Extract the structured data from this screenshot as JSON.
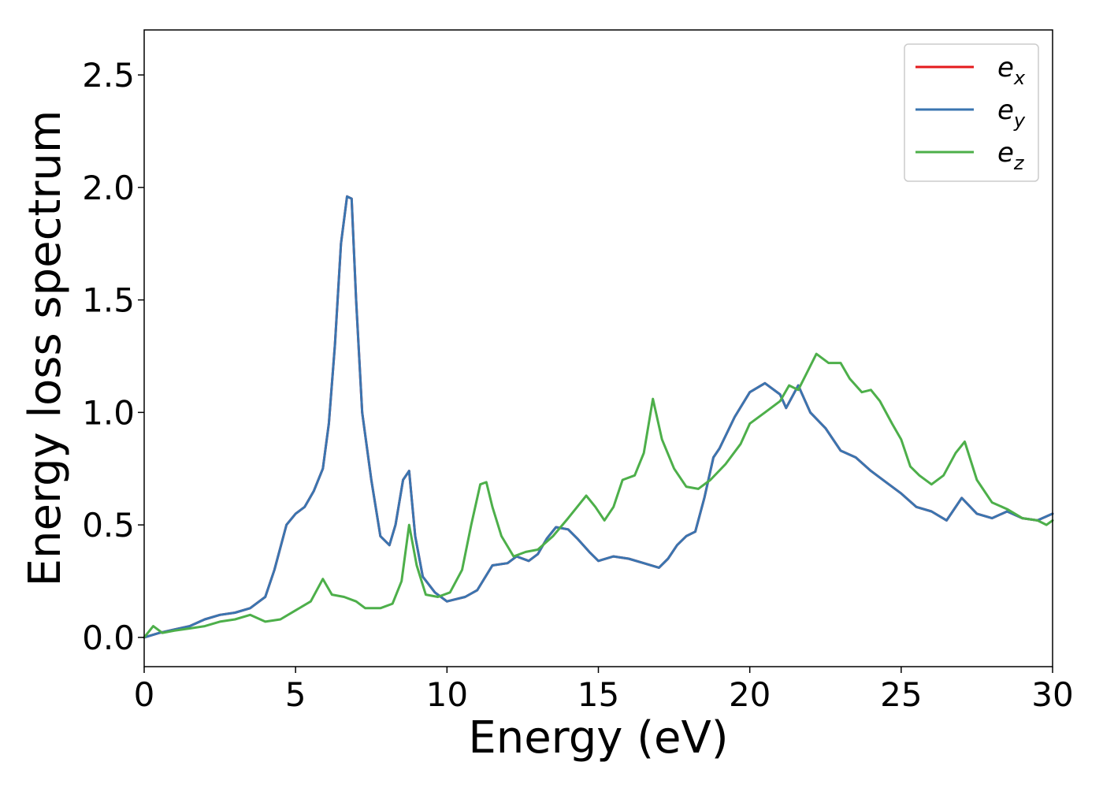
{
  "chart_data": {
    "type": "line",
    "xlabel": "Energy (eV)",
    "ylabel": "Energy loss spectrum",
    "xlim": [
      0,
      30
    ],
    "ylim": [
      -0.13,
      2.7
    ],
    "xticks": [
      0,
      5,
      10,
      15,
      20,
      25,
      30
    ],
    "xtick_labels": [
      "0",
      "5",
      "10",
      "15",
      "20",
      "25",
      "30"
    ],
    "yticks": [
      0.0,
      0.5,
      1.0,
      1.5,
      2.0,
      2.5
    ],
    "ytick_labels": [
      "0.0",
      "0.5",
      "1.0",
      "1.5",
      "2.0",
      "2.5"
    ],
    "grid": false,
    "legend_position": "top-right",
    "series": [
      {
        "name": "e_x",
        "label_main": "e",
        "label_sub": "x",
        "color": "#e41a1c",
        "x": [
          0,
          0.5,
          1,
          1.5,
          2,
          2.5,
          3,
          3.5,
          4,
          4.3,
          4.7,
          5,
          5.3,
          5.6,
          5.9,
          6.1,
          6.3,
          6.5,
          6.7,
          6.85,
          7,
          7.2,
          7.5,
          7.8,
          8.1,
          8.3,
          8.55,
          8.75,
          8.95,
          9.2,
          9.6,
          10,
          10.3,
          10.6,
          11,
          11.5,
          12,
          12.3,
          12.7,
          13,
          13.3,
          13.6,
          14,
          14.3,
          14.7,
          15,
          15.5,
          16,
          16.5,
          17,
          17.3,
          17.6,
          17.9,
          18.2,
          18.5,
          18.8,
          19,
          19.5,
          20,
          20.5,
          21,
          21.2,
          21.4,
          21.6,
          21.8,
          22,
          22.5,
          23,
          23.5,
          24,
          24.5,
          25,
          25.5,
          26,
          26.5,
          27,
          27.5,
          28,
          28.5,
          29,
          29.5,
          30
        ],
        "y": [
          0,
          0.02,
          0.035,
          0.05,
          0.08,
          0.1,
          0.11,
          0.13,
          0.18,
          0.3,
          0.5,
          0.55,
          0.58,
          0.65,
          0.75,
          0.95,
          1.3,
          1.75,
          1.96,
          1.95,
          1.5,
          1.0,
          0.7,
          0.45,
          0.41,
          0.5,
          0.7,
          0.74,
          0.45,
          0.27,
          0.2,
          0.16,
          0.17,
          0.18,
          0.21,
          0.32,
          0.33,
          0.36,
          0.34,
          0.37,
          0.44,
          0.49,
          0.48,
          0.44,
          0.38,
          0.34,
          0.36,
          0.35,
          0.33,
          0.31,
          0.35,
          0.41,
          0.45,
          0.47,
          0.62,
          0.8,
          0.84,
          0.98,
          1.09,
          1.13,
          1.08,
          1.02,
          1.07,
          1.12,
          1.06,
          1.0,
          0.93,
          0.83,
          0.8,
          0.74,
          0.69,
          0.64,
          0.58,
          0.56,
          0.52,
          0.62,
          0.55,
          0.53,
          0.56,
          0.53,
          0.52,
          0.55
        ]
      },
      {
        "name": "e_y",
        "label_main": "e",
        "label_sub": "y",
        "color": "#3a75b0",
        "x": [
          0,
          0.5,
          1,
          1.5,
          2,
          2.5,
          3,
          3.5,
          4,
          4.3,
          4.7,
          5,
          5.3,
          5.6,
          5.9,
          6.1,
          6.3,
          6.5,
          6.7,
          6.85,
          7,
          7.2,
          7.5,
          7.8,
          8.1,
          8.3,
          8.55,
          8.75,
          8.95,
          9.2,
          9.6,
          10,
          10.3,
          10.6,
          11,
          11.5,
          12,
          12.3,
          12.7,
          13,
          13.3,
          13.6,
          14,
          14.3,
          14.7,
          15,
          15.5,
          16,
          16.5,
          17,
          17.3,
          17.6,
          17.9,
          18.2,
          18.5,
          18.8,
          19,
          19.5,
          20,
          20.5,
          21,
          21.2,
          21.4,
          21.6,
          21.8,
          22,
          22.5,
          23,
          23.5,
          24,
          24.5,
          25,
          25.5,
          26,
          26.5,
          27,
          27.5,
          28,
          28.5,
          29,
          29.5,
          30
        ],
        "y": [
          0,
          0.02,
          0.035,
          0.05,
          0.08,
          0.1,
          0.11,
          0.13,
          0.18,
          0.3,
          0.5,
          0.55,
          0.58,
          0.65,
          0.75,
          0.95,
          1.3,
          1.75,
          1.96,
          1.95,
          1.5,
          1.0,
          0.7,
          0.45,
          0.41,
          0.5,
          0.7,
          0.74,
          0.45,
          0.27,
          0.2,
          0.16,
          0.17,
          0.18,
          0.21,
          0.32,
          0.33,
          0.36,
          0.34,
          0.37,
          0.44,
          0.49,
          0.48,
          0.44,
          0.38,
          0.34,
          0.36,
          0.35,
          0.33,
          0.31,
          0.35,
          0.41,
          0.45,
          0.47,
          0.62,
          0.8,
          0.84,
          0.98,
          1.09,
          1.13,
          1.08,
          1.02,
          1.07,
          1.12,
          1.06,
          1.0,
          0.93,
          0.83,
          0.8,
          0.74,
          0.69,
          0.64,
          0.58,
          0.56,
          0.52,
          0.62,
          0.55,
          0.53,
          0.56,
          0.53,
          0.52,
          0.55
        ]
      },
      {
        "name": "e_z",
        "label_main": "e",
        "label_sub": "z",
        "color": "#4daf4a",
        "x": [
          0,
          0.3,
          0.6,
          1,
          1.5,
          2,
          2.5,
          3,
          3.5,
          4,
          4.5,
          5,
          5.5,
          5.9,
          6.2,
          6.6,
          7,
          7.3,
          7.8,
          8.2,
          8.5,
          8.75,
          9,
          9.3,
          9.7,
          10.1,
          10.5,
          10.8,
          11.1,
          11.3,
          11.5,
          11.8,
          12.2,
          12.6,
          13,
          13.5,
          14,
          14.3,
          14.6,
          14.9,
          15.2,
          15.5,
          15.8,
          16.2,
          16.5,
          16.8,
          17.1,
          17.5,
          17.9,
          18.3,
          18.7,
          19.2,
          19.7,
          20,
          20.5,
          21,
          21.3,
          21.6,
          21.9,
          22.2,
          22.6,
          23,
          23.3,
          23.7,
          24,
          24.3,
          24.7,
          25,
          25.3,
          25.6,
          26,
          26.4,
          26.8,
          27.1,
          27.5,
          28,
          28.5,
          29,
          29.5,
          29.8,
          30
        ],
        "y": [
          0,
          0.05,
          0.02,
          0.03,
          0.04,
          0.05,
          0.07,
          0.08,
          0.1,
          0.07,
          0.08,
          0.12,
          0.16,
          0.26,
          0.19,
          0.18,
          0.16,
          0.13,
          0.13,
          0.15,
          0.25,
          0.5,
          0.32,
          0.19,
          0.18,
          0.2,
          0.3,
          0.5,
          0.68,
          0.69,
          0.58,
          0.45,
          0.36,
          0.38,
          0.39,
          0.45,
          0.53,
          0.58,
          0.63,
          0.58,
          0.52,
          0.58,
          0.7,
          0.72,
          0.82,
          1.06,
          0.88,
          0.75,
          0.67,
          0.66,
          0.7,
          0.77,
          0.86,
          0.95,
          1.0,
          1.05,
          1.12,
          1.1,
          1.18,
          1.26,
          1.22,
          1.22,
          1.15,
          1.09,
          1.1,
          1.05,
          0.95,
          0.88,
          0.76,
          0.72,
          0.68,
          0.72,
          0.82,
          0.87,
          0.7,
          0.6,
          0.57,
          0.53,
          0.52,
          0.5,
          0.52
        ]
      }
    ]
  }
}
